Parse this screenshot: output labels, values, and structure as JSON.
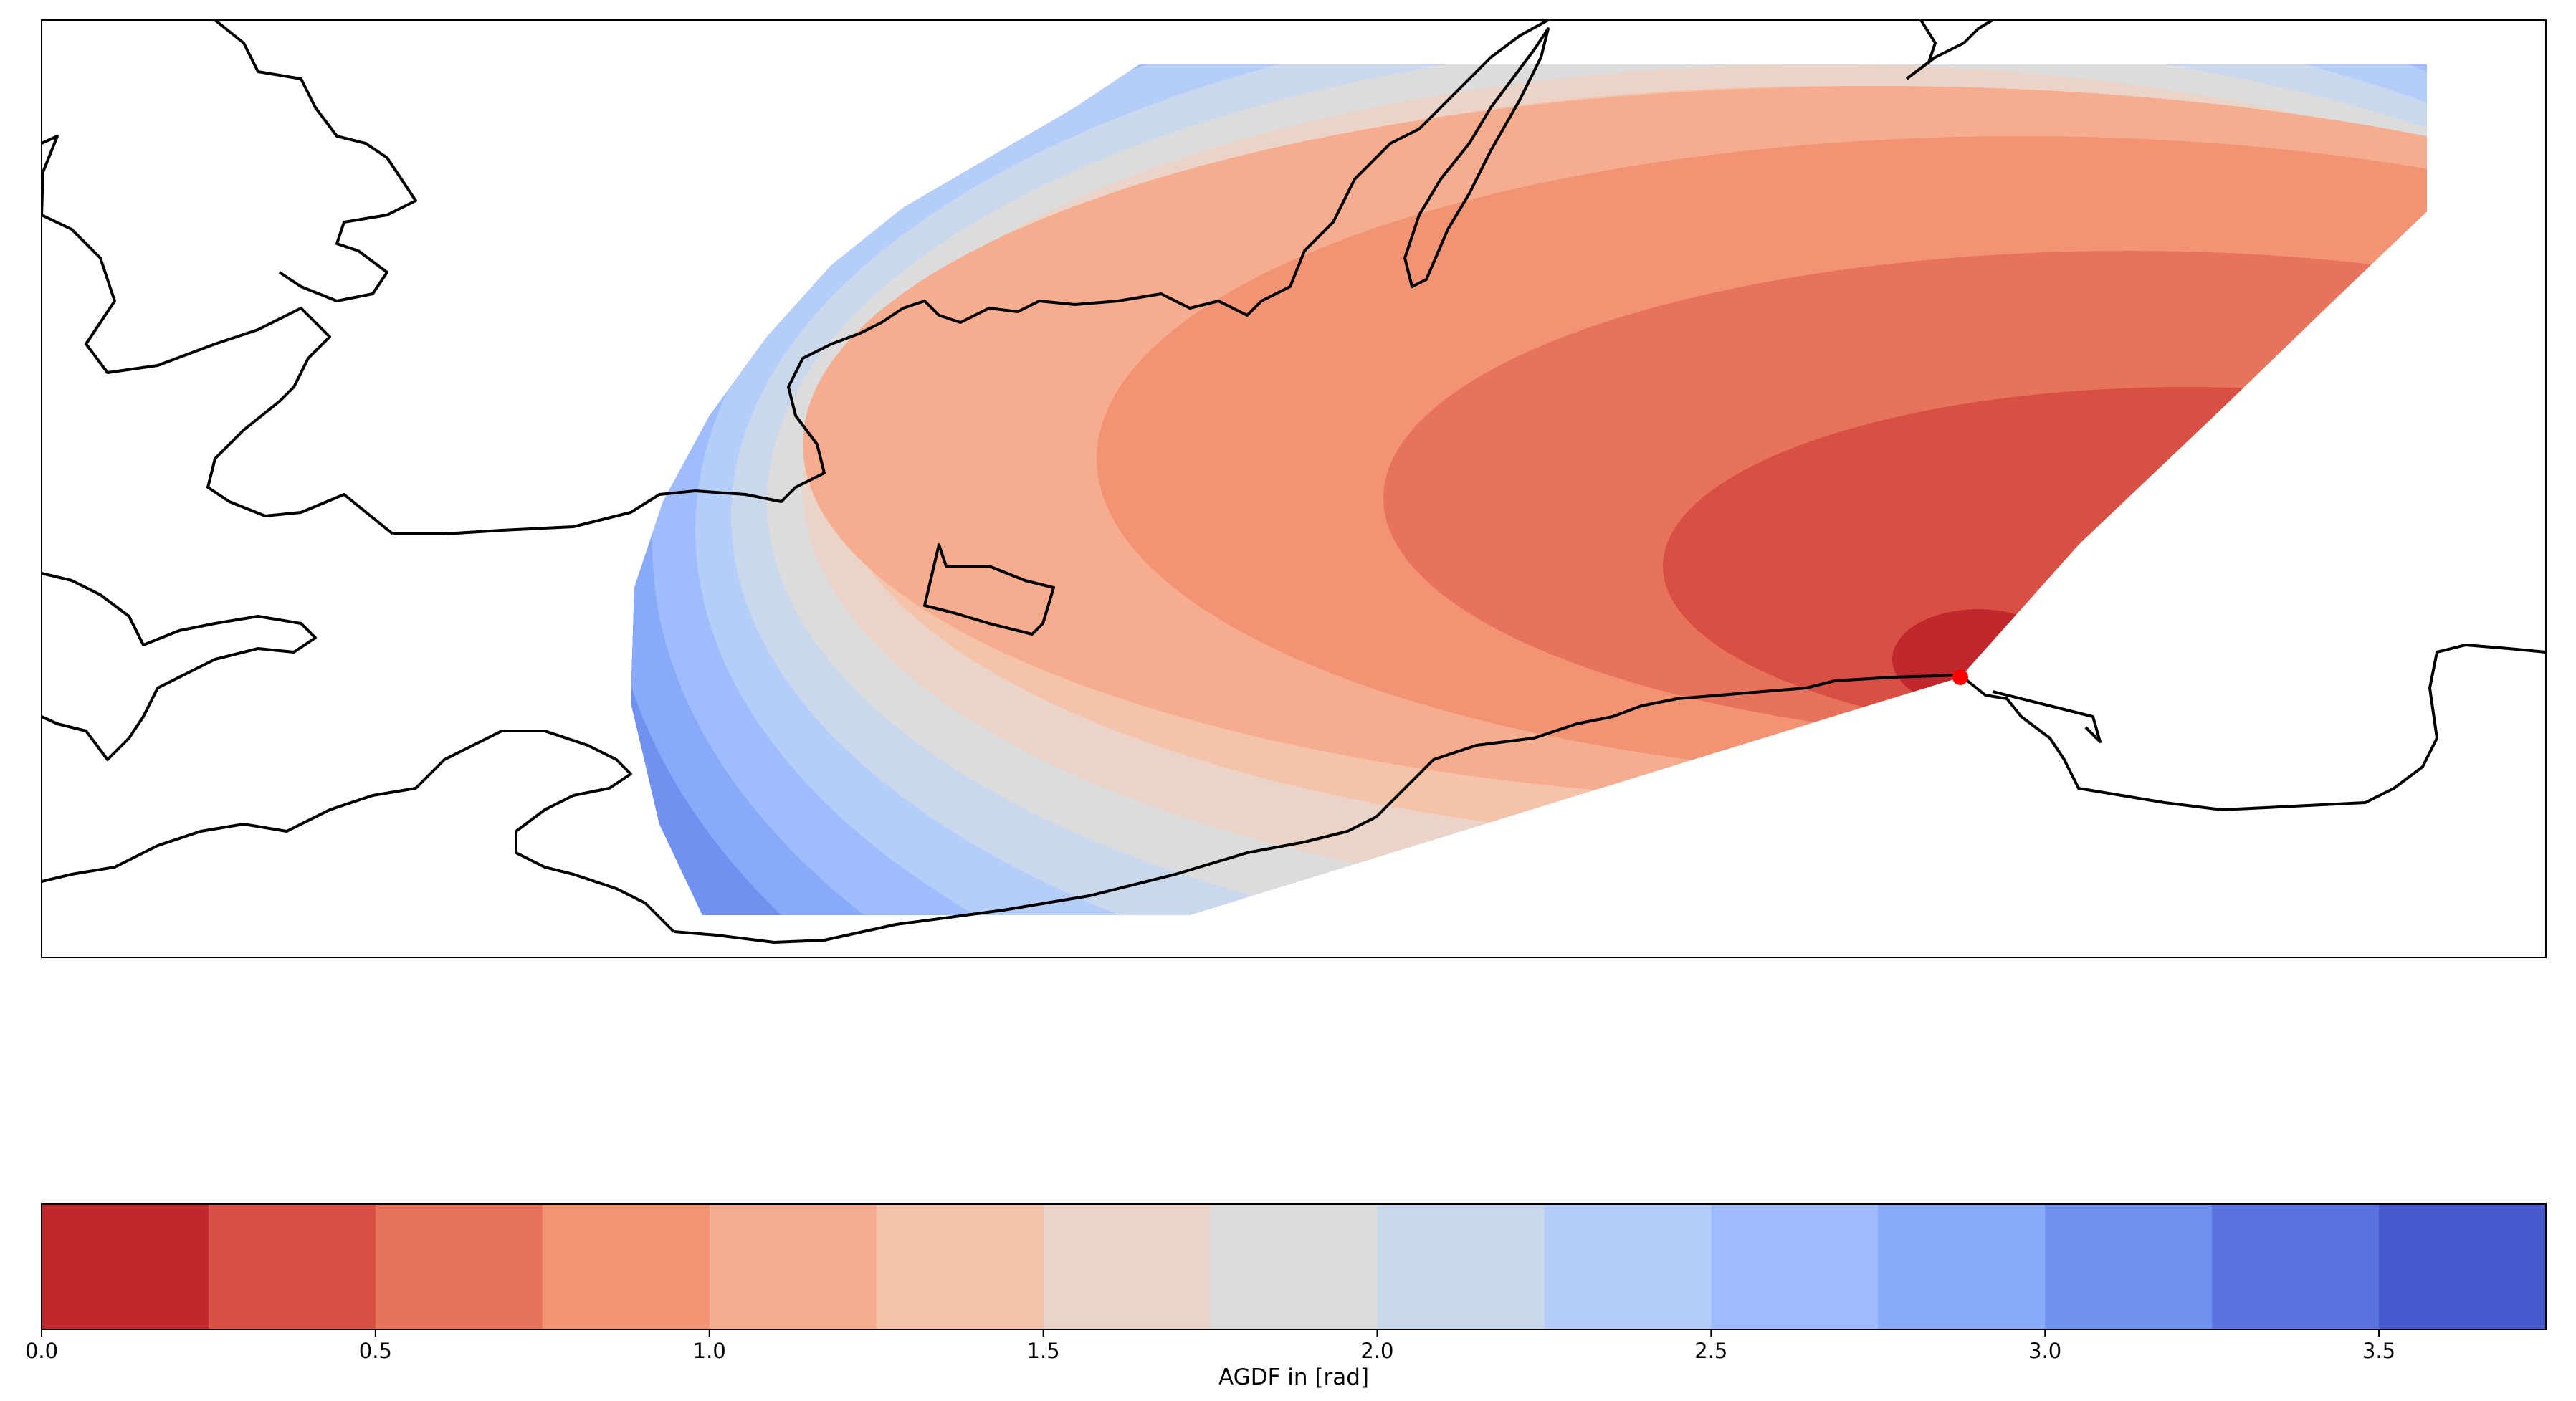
{
  "chart_data": {
    "type": "heatmap",
    "colorbar": {
      "label": "AGDF in [rad]",
      "range": [
        0,
        3.75
      ],
      "step": 0.25,
      "ticks": [
        "0.0",
        "0.5",
        "1.0",
        "1.5",
        "2.0",
        "2.5",
        "3.0",
        "3.5"
      ],
      "colors": [
        "#c0282d",
        "#d84f44",
        "#e8735c",
        "#f29474",
        "#f6ad8f",
        "#f5c3aa",
        "#ebd3c7",
        "#dddcdc",
        "#cad8ee",
        "#b5cdf9",
        "#9fbdfc",
        "#89a9f9",
        "#7191f1",
        "#5972e0",
        "#4459cc"
      ]
    },
    "marker": {
      "color": "#ff0000"
    },
    "grid": false
  }
}
